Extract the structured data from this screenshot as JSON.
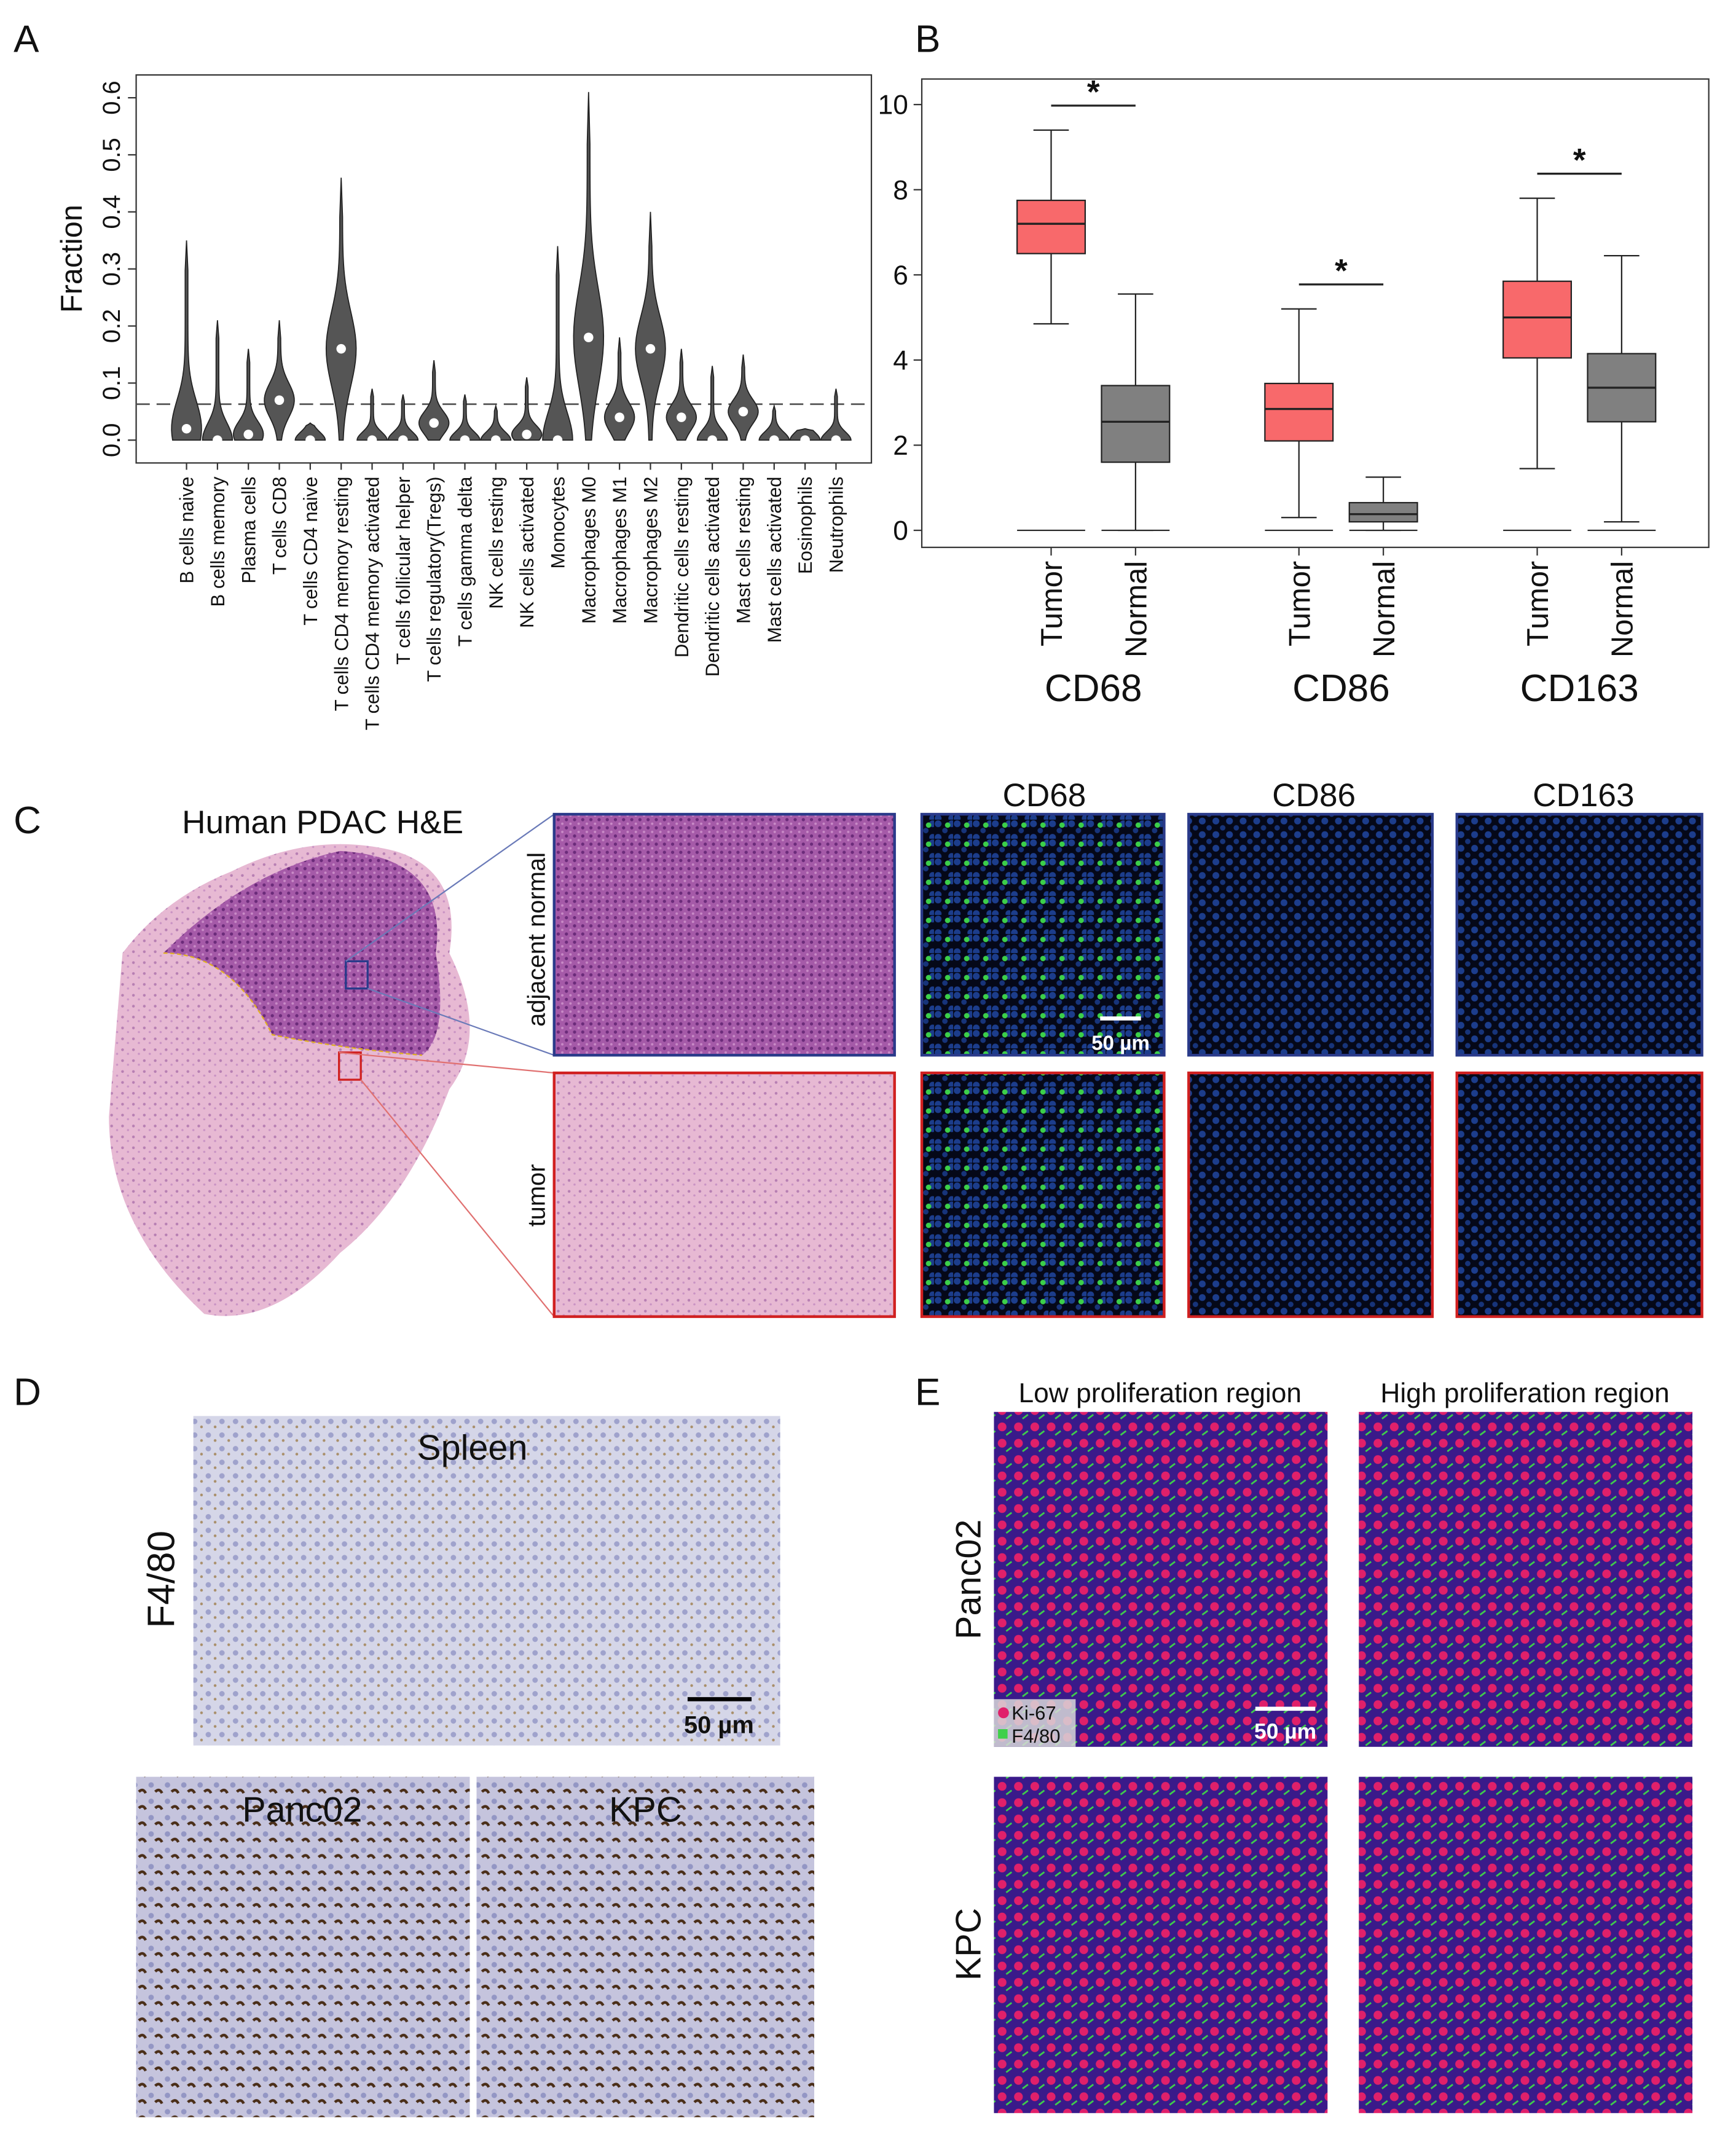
{
  "panels": {
    "a": "A",
    "b": "B",
    "c": "C",
    "d": "D",
    "e": "E"
  },
  "chart_data": [
    {
      "type": "violin",
      "y_label": "Fraction",
      "categories": [
        "B cells naive",
        "B cells memory",
        "Plasma cells",
        "T cells CD8",
        "T cells CD4 naive",
        "T cells CD4 memory resting",
        "T cells CD4 memory activated",
        "T cells follicular helper",
        "T cells regulatory(Tregs)",
        "T cells gamma delta",
        "NK cells resting",
        "NK cells activated",
        "Monocytes",
        "Macrophages M0",
        "Macrophages M1",
        "Macrophages M2",
        "Dendritic cells resting",
        "Dendritic cells activated",
        "Mast cells resting",
        "Mast cells activated",
        "Eosinophils",
        "Neutrophils"
      ],
      "values": [
        0.02,
        0.0,
        0.01,
        0.07,
        0.0,
        0.16,
        0.0,
        0.0,
        0.03,
        0.0,
        0.0,
        0.01,
        0.0,
        0.18,
        0.04,
        0.16,
        0.04,
        0.0,
        0.05,
        0.0,
        0.0,
        0.0
      ],
      "max_values": [
        0.35,
        0.21,
        0.16,
        0.21,
        0.03,
        0.46,
        0.09,
        0.08,
        0.14,
        0.08,
        0.06,
        0.11,
        0.34,
        0.61,
        0.18,
        0.4,
        0.16,
        0.13,
        0.15,
        0.06,
        0.02,
        0.09
      ],
      "color": "#555555",
      "reference_line": 0.063,
      "ylim": [
        -0.04,
        0.64
      ],
      "yticks": [
        {
          "value": 0,
          "label": "0.0"
        },
        {
          "value": 0.1,
          "label": "0.1"
        },
        {
          "value": 0.2,
          "label": "0.2"
        },
        {
          "value": 0.3,
          "label": "0.3"
        },
        {
          "value": 0.4,
          "label": "0.4"
        },
        {
          "value": 0.5,
          "label": "0.5"
        },
        {
          "value": 0.6,
          "label": "0.6"
        }
      ]
    },
    {
      "type": "box",
      "categories": [
        "CD68",
        "CD86",
        "CD163"
      ],
      "series": [
        {
          "name": "Tumor",
          "color": "#f8696b",
          "min": [
            0,
            0,
            0
          ],
          "whislo": [
            4.85,
            0.3,
            1.45
          ],
          "q1": [
            6.5,
            2.1,
            4.05
          ],
          "median": [
            7.2,
            2.85,
            5.0
          ],
          "q3": [
            7.75,
            3.45,
            5.85
          ],
          "whishi": [
            9.4,
            5.2,
            7.8
          ]
        },
        {
          "name": "Normal",
          "color": "#808080",
          "min": [
            0,
            0,
            0
          ],
          "whislo": [
            0,
            0,
            0.2
          ],
          "q1": [
            1.6,
            0.2,
            2.55
          ],
          "median": [
            2.55,
            0.38,
            3.35
          ],
          "q3": [
            3.4,
            0.65,
            4.15
          ],
          "whishi": [
            5.55,
            1.25,
            6.45
          ]
        }
      ],
      "annotations": [
        "*",
        "*",
        "*"
      ],
      "ylim": [
        -0.4,
        10.6
      ],
      "yticks": [
        0,
        2,
        4,
        6,
        8,
        10
      ]
    }
  ],
  "panel_c": {
    "title": "Human PDAC H&E",
    "rows": [
      "adjacent normal",
      "tumor"
    ],
    "stains": [
      "CD68",
      "CD86",
      "CD163"
    ],
    "scale": "50 µm"
  },
  "panel_d": {
    "stain": "F4/80",
    "top": "Spleen",
    "bottom": [
      "Panc02",
      "KPC"
    ],
    "scale": "50 µm"
  },
  "panel_e": {
    "columns": [
      "Low proliferation region",
      "High proliferation region"
    ],
    "rows": [
      "Panc02",
      "KPC"
    ],
    "legend": [
      "Ki-67",
      "F4/80"
    ],
    "scale": "50 µm"
  }
}
